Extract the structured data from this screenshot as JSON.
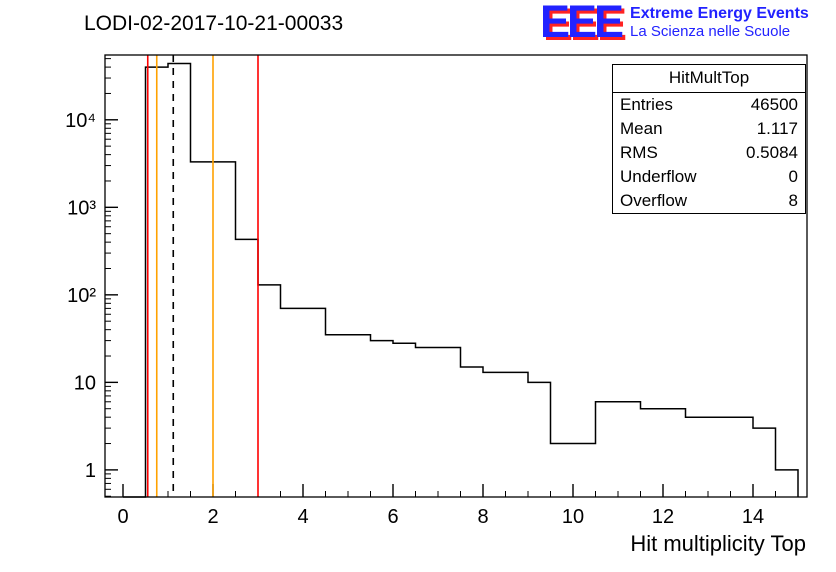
{
  "title": "LODI-02-2017-10-21-00033",
  "logo": {
    "letters": "EEE",
    "line1": "Extreme Energy Events",
    "line2": "La Scienza nelle Scuole",
    "color": "#2222ff",
    "shadow": "#ff2222"
  },
  "stats": {
    "title": "HitMultTop",
    "rows": [
      {
        "label": "Entries",
        "value": "46500"
      },
      {
        "label": "Mean",
        "value": "1.117"
      },
      {
        "label": "RMS",
        "value": "0.5084"
      },
      {
        "label": "Underflow",
        "value": "0"
      },
      {
        "label": "Overflow",
        "value": "8"
      }
    ]
  },
  "chart_data": {
    "type": "bar",
    "subtype": "step-histogram-log-y",
    "title": "LODI-02-2017-10-21-00033",
    "xlabel": "Hit multiplicity Top",
    "ylabel": "",
    "x_range": [
      -0.4,
      15.2
    ],
    "x_major_ticks": [
      0,
      2,
      4,
      6,
      8,
      10,
      12,
      14
    ],
    "x_tick_labels": [
      "0",
      "2",
      "4",
      "6",
      "8",
      "10",
      "12",
      "14"
    ],
    "y_scale": "log",
    "y_range": [
      0.49,
      55000
    ],
    "y_ticks": [
      {
        "v": 1,
        "label": "1"
      },
      {
        "v": 10,
        "label": "10"
      },
      {
        "v": 100,
        "label": "10²"
      },
      {
        "v": 1000,
        "label": "10³"
      },
      {
        "v": 10000,
        "label": "10⁴"
      }
    ],
    "bin_start": 0,
    "bin_width": 0.5,
    "counts": [
      0,
      40000,
      44000,
      3300,
      3300,
      430,
      130,
      70,
      70,
      35,
      35,
      30,
      28,
      25,
      25,
      15,
      13,
      13,
      10,
      2,
      2,
      6,
      6,
      5,
      5,
      4,
      4,
      4,
      3,
      1
    ],
    "line_color": "#000000",
    "grid": false,
    "reference_lines": [
      {
        "x": 0.55,
        "color": "#ff0000",
        "style": "solid",
        "name": "error-low"
      },
      {
        "x": 0.75,
        "color": "#ffa200",
        "style": "solid",
        "name": "warn-low"
      },
      {
        "x": 1.117,
        "color": "#000000",
        "style": "dashed",
        "name": "mean"
      },
      {
        "x": 2.0,
        "color": "#ffa200",
        "style": "solid",
        "name": "warn-high"
      },
      {
        "x": 3.0,
        "color": "#ff0000",
        "style": "solid",
        "name": "error-high"
      }
    ]
  }
}
